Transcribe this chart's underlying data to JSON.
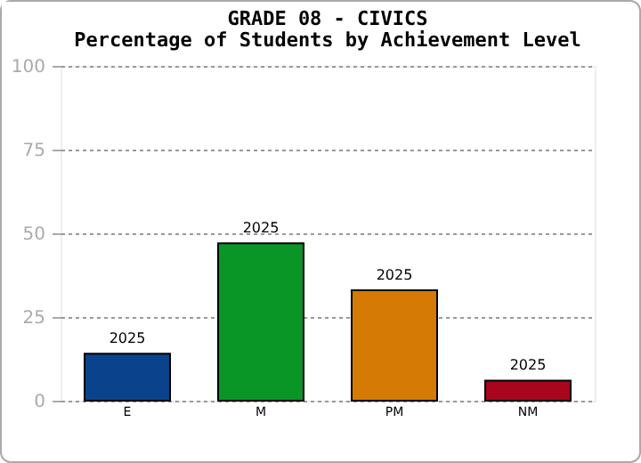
{
  "chart_data": {
    "type": "bar",
    "title": "GRADE 08 - CIVICS",
    "subtitle": "Percentage of Students by Achievement Level",
    "categories": [
      "E",
      "M",
      "PM",
      "NM"
    ],
    "values": [
      14,
      47,
      33,
      6
    ],
    "colors": [
      "#0a428c",
      "#0a9626",
      "#d67a06",
      "#a8061e"
    ],
    "ylim": [
      0,
      100
    ],
    "yticks": [
      0,
      25,
      50,
      75,
      100
    ],
    "grid": "y",
    "annotations": [
      {
        "text": "2025",
        "x": "E",
        "y": 14
      },
      {
        "text": "2025",
        "x": "M",
        "y": 47
      },
      {
        "text": "2025",
        "x": "PM",
        "y": 33
      },
      {
        "text": "2025",
        "x": "NM",
        "y": 6
      }
    ]
  }
}
